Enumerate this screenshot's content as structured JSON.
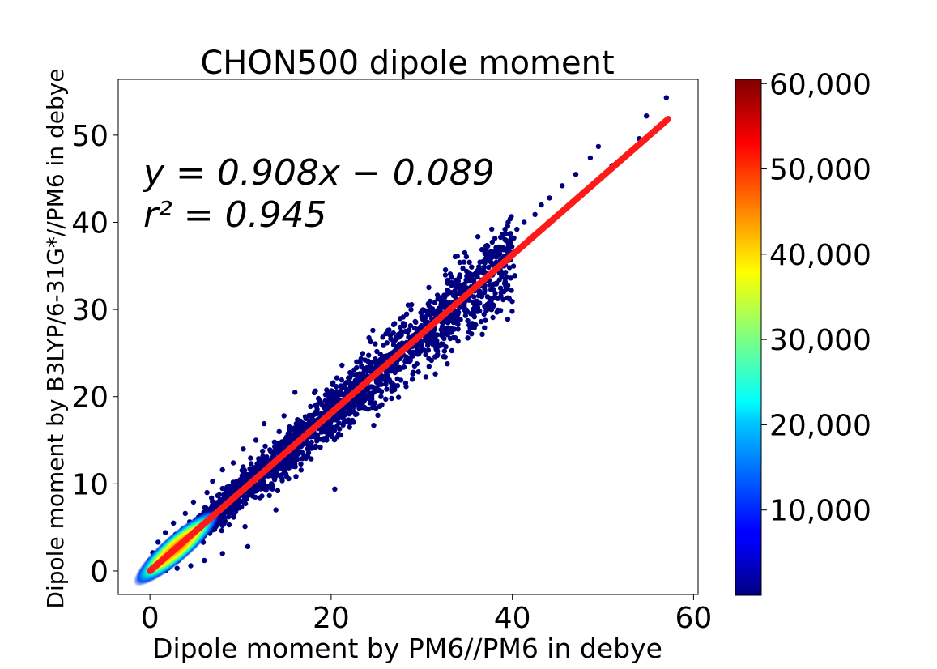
{
  "chart_data": {
    "type": "scatter",
    "title": "CHON500 dipole moment",
    "xlabel": "Dipole moment by PM6//PM6 in debye",
    "ylabel": "Dipole moment by B3LYP/6-31G*//PM6 in debye",
    "xlim": [
      -3.5,
      60.5
    ],
    "ylim": [
      -2.7,
      56.4
    ],
    "xticks": [
      0,
      20,
      40,
      60
    ],
    "yticks": [
      0,
      10,
      20,
      30,
      40,
      50
    ],
    "grid": false,
    "fit_line": {
      "slope": 0.908,
      "intercept": -0.089,
      "x_range": [
        0,
        57.2
      ],
      "color": "#ff1a1a",
      "equation_label": "y = 0.908x − 0.089",
      "r2_label": "r² = 0.945"
    },
    "density_colorbar": {
      "colormap": "jet",
      "range": [
        0,
        60500
      ],
      "ticks": [
        10000,
        20000,
        30000,
        40000,
        50000,
        60000
      ],
      "tick_labels": [
        "10,000",
        "20,000",
        "30,000",
        "40,000",
        "50,000",
        "60,000"
      ]
    },
    "sparse_points": [
      [
        57.0,
        54.3
      ],
      [
        54.8,
        52.2
      ],
      [
        49.5,
        48.7
      ],
      [
        48.6,
        47.4
      ],
      [
        47.0,
        45.5
      ],
      [
        45.5,
        44.2
      ],
      [
        44.1,
        42.8
      ],
      [
        43.2,
        42.0
      ],
      [
        42.5,
        40.9
      ],
      [
        41.3,
        40.0
      ],
      [
        40.5,
        39.2
      ],
      [
        39.2,
        38.0
      ],
      [
        38.2,
        37.1
      ],
      [
        37.6,
        36.5
      ],
      [
        37.0,
        35.8
      ],
      [
        36.2,
        34.5
      ],
      [
        35.5,
        33.8
      ],
      [
        34.6,
        32.8
      ],
      [
        33.5,
        31.6
      ],
      [
        32.4,
        30.5
      ],
      [
        31.5,
        29.4
      ],
      [
        35.8,
        27.9
      ],
      [
        34.0,
        28.3
      ],
      [
        35.5,
        27.2
      ],
      [
        30.8,
        28.0
      ],
      [
        29.6,
        27.0
      ],
      [
        28.3,
        26.2
      ],
      [
        27.0,
        24.8
      ],
      [
        25.7,
        24.1
      ],
      [
        24.5,
        22.7
      ],
      [
        24.6,
        27.6
      ],
      [
        23.0,
        22.1
      ],
      [
        21.8,
        20.6
      ],
      [
        20.5,
        19.4
      ],
      [
        19.4,
        18.2
      ],
      [
        18.2,
        17.0
      ],
      [
        17.0,
        15.9
      ],
      [
        15.8,
        14.7
      ],
      [
        14.8,
        17.8
      ],
      [
        12.6,
        16.9
      ],
      [
        11.7,
        15.0
      ],
      [
        10.3,
        14.0
      ],
      [
        9.2,
        12.4
      ],
      [
        8.0,
        11.6
      ],
      [
        6.9,
        10.3
      ],
      [
        6.3,
        9.0
      ],
      [
        4.8,
        7.9
      ],
      [
        3.9,
        6.6
      ],
      [
        2.6,
        5.5
      ],
      [
        1.7,
        4.4
      ],
      [
        0.9,
        3.3
      ],
      [
        0.3,
        2.1
      ],
      [
        19.5,
        15.0
      ],
      [
        24.7,
        16.7
      ],
      [
        25.5,
        20.0
      ],
      [
        31.5,
        22.6
      ],
      [
        32.2,
        25.9
      ],
      [
        17.2,
        12.9
      ],
      [
        20.4,
        9.4
      ],
      [
        13.9,
        7.0
      ],
      [
        10.5,
        5.1
      ],
      [
        10.8,
        2.8
      ],
      [
        8.0,
        2.0
      ],
      [
        6.0,
        1.2
      ],
      [
        4.5,
        0.6
      ],
      [
        3.0,
        0.3
      ],
      [
        15.5,
        13.5
      ],
      [
        22.0,
        18.0
      ],
      [
        13.0,
        9.6
      ],
      [
        27.0,
        20.8
      ],
      [
        29.0,
        22.6
      ],
      [
        36.0,
        32.5
      ],
      [
        41.8,
        37.8
      ],
      [
        47.8,
        43.5
      ],
      [
        51.0,
        46.5
      ],
      [
        54.0,
        49.6
      ],
      [
        16.0,
        20.5
      ],
      [
        21.2,
        23.6
      ],
      [
        14.5,
        11.0
      ],
      [
        18.8,
        14.2
      ],
      [
        28.5,
        30.5
      ],
      [
        34.2,
        35.4
      ]
    ]
  }
}
